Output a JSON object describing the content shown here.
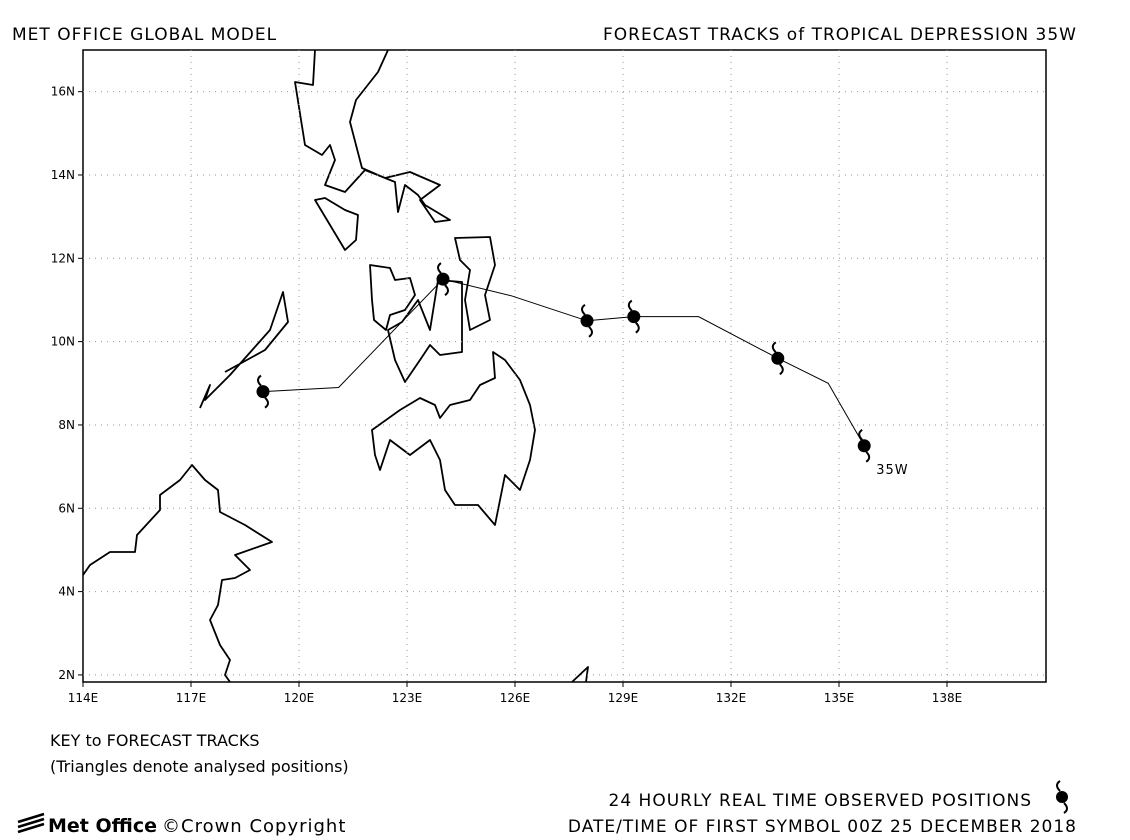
{
  "header": {
    "left": "MET OFFICE GLOBAL MODEL",
    "right": "FORECAST TRACKS of TROPICAL DEPRESSION 35W"
  },
  "chart_data": {
    "type": "track",
    "xlim": [
      114,
      140.75
    ],
    "ylim": [
      1.83,
      17.0
    ],
    "xticks": [
      {
        "value": 114,
        "label": "114E"
      },
      {
        "value": 117,
        "label": "117E"
      },
      {
        "value": 120,
        "label": "120E"
      },
      {
        "value": 123,
        "label": "123E"
      },
      {
        "value": 126,
        "label": "126E"
      },
      {
        "value": 129,
        "label": "129E"
      },
      {
        "value": 132,
        "label": "132E"
      },
      {
        "value": 135,
        "label": "135E"
      },
      {
        "value": 138,
        "label": "138E"
      }
    ],
    "yticks": [
      {
        "value": 2,
        "label": "2N"
      },
      {
        "value": 4,
        "label": "4N"
      },
      {
        "value": 6,
        "label": "6N"
      },
      {
        "value": 8,
        "label": "8N"
      },
      {
        "value": 10,
        "label": "10N"
      },
      {
        "value": 12,
        "label": "12N"
      },
      {
        "value": 14,
        "label": "14N"
      },
      {
        "value": 16,
        "label": "16N"
      }
    ],
    "grid": true,
    "track": {
      "lon": [
        119.0,
        121.1,
        124.0,
        125.9,
        128.0,
        129.3,
        131.1,
        133.3,
        134.7,
        135.7
      ],
      "lat": [
        8.8,
        8.9,
        11.5,
        11.1,
        10.5,
        10.6,
        10.6,
        9.6,
        9.0,
        7.5
      ]
    },
    "positions": {
      "lon": [
        119.0,
        124.0,
        128.0,
        129.3,
        133.3,
        135.7
      ],
      "lat": [
        8.8,
        11.5,
        10.5,
        10.6,
        9.6,
        7.5
      ]
    },
    "storm_label": "35W"
  },
  "key": {
    "title": "KEY to FORECAST TRACKS",
    "note": "(Triangles denote analysed positions)",
    "observed": "24 HOURLY REAL TIME OBSERVED POSITIONS",
    "first_symbol": "DATE/TIME OF FIRST SYMBOL 00Z 25 DECEMBER 2018"
  },
  "footer": {
    "logo": "Met Office",
    "copyright": "©Crown Copyright"
  }
}
